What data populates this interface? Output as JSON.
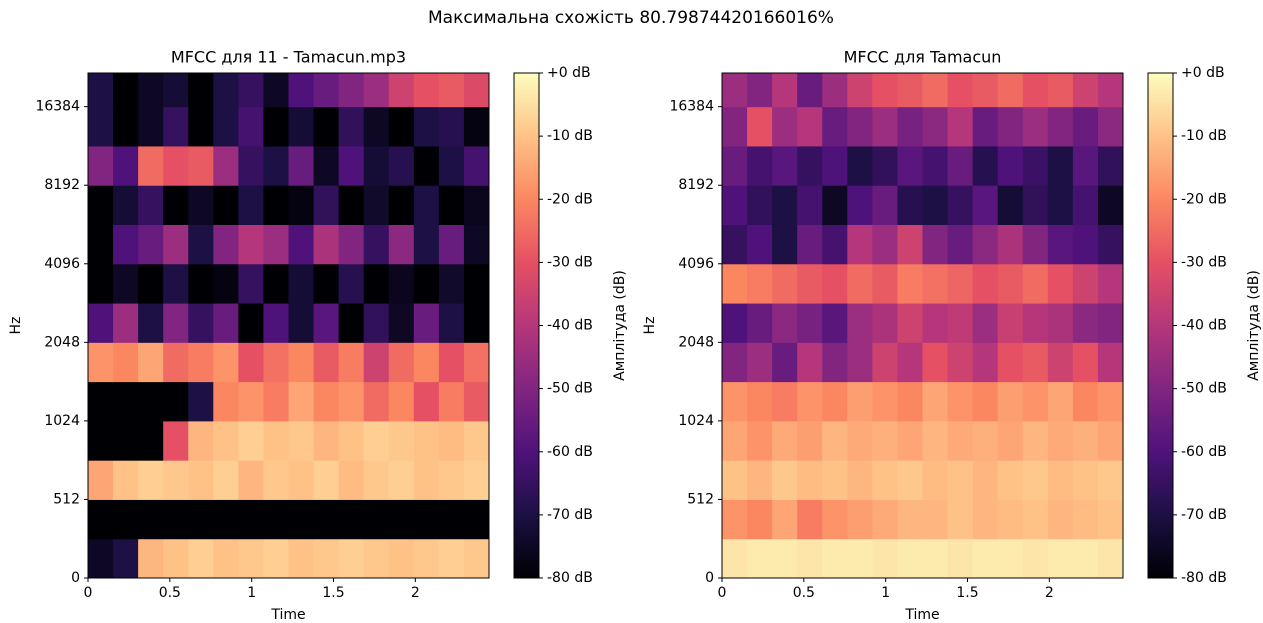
{
  "title": "Максимальна схожість 80.79874420166016%",
  "chart_data": [
    {
      "type": "heatmap",
      "title": "MFCC для 11 - Tamacun.mp3",
      "x_label": "Time",
      "y_label": "Hz",
      "xlim": [
        0,
        2.45
      ],
      "xticks": [
        0,
        0.5,
        1,
        1.5,
        2
      ],
      "ylim": [
        0,
        22050
      ],
      "yticks": [
        0,
        512,
        1024,
        2048,
        4096,
        8192,
        16384
      ],
      "yscale": "symlog",
      "colormap": "magma",
      "y_edges": [
        0,
        256,
        512,
        724,
        1024,
        1448,
        2048,
        2896,
        4096,
        5793,
        8192,
        11585,
        16384,
        22050
      ],
      "z": [
        [
          -75,
          -70,
          -12,
          -10,
          -8,
          -10,
          -9,
          -8,
          -10,
          -9,
          -8,
          -9,
          -10,
          -9,
          -8,
          -9
        ],
        [
          -80,
          -80,
          -80,
          -80,
          -80,
          -80,
          -80,
          -80,
          -80,
          -80,
          -80,
          -80,
          -80,
          -80,
          -80,
          -80
        ],
        [
          -15,
          -10,
          -8,
          -9,
          -10,
          -8,
          -12,
          -9,
          -10,
          -8,
          -11,
          -9,
          -8,
          -10,
          -9,
          -8
        ],
        [
          -80,
          -80,
          -80,
          -30,
          -12,
          -10,
          -8,
          -10,
          -9,
          -12,
          -10,
          -8,
          -9,
          -10,
          -11,
          -9
        ],
        [
          -80,
          -80,
          -80,
          -80,
          -70,
          -20,
          -18,
          -22,
          -15,
          -20,
          -18,
          -25,
          -20,
          -30,
          -22,
          -28
        ],
        [
          -18,
          -20,
          -15,
          -25,
          -22,
          -18,
          -30,
          -24,
          -20,
          -28,
          -22,
          -35,
          -25,
          -20,
          -30,
          -24
        ],
        [
          -60,
          -45,
          -70,
          -50,
          -65,
          -55,
          -80,
          -60,
          -72,
          -58,
          -80,
          -66,
          -75,
          -55,
          -70,
          -80
        ],
        [
          -80,
          -75,
          -80,
          -70,
          -80,
          -78,
          -65,
          -80,
          -72,
          -80,
          -68,
          -80,
          -76,
          -80,
          -74,
          -80
        ],
        [
          -80,
          -60,
          -55,
          -45,
          -70,
          -50,
          -40,
          -45,
          -60,
          -42,
          -50,
          -65,
          -48,
          -70,
          -55,
          -75
        ],
        [
          -80,
          -72,
          -65,
          -80,
          -75,
          -80,
          -70,
          -80,
          -78,
          -66,
          -80,
          -74,
          -80,
          -70,
          -80,
          -76
        ],
        [
          -50,
          -60,
          -25,
          -30,
          -28,
          -45,
          -65,
          -70,
          -55,
          -75,
          -60,
          -72,
          -68,
          -80,
          -70,
          -62
        ],
        [
          -70,
          -80,
          -75,
          -65,
          -80,
          -70,
          -62,
          -80,
          -72,
          -80,
          -66,
          -75,
          -80,
          -70,
          -68,
          -78
        ],
        [
          -70,
          -80,
          -75,
          -72,
          -80,
          -70,
          -65,
          -75,
          -60,
          -55,
          -50,
          -45,
          -35,
          -30,
          -28,
          -32
        ]
      ],
      "colorbar": {
        "label": "Амплітуда (dB)",
        "lim": [
          -80,
          0
        ],
        "ticks": [
          {
            "value": 0,
            "label": "+0 dB"
          },
          {
            "value": -10,
            "label": "-10 dB"
          },
          {
            "value": -20,
            "label": "-20 dB"
          },
          {
            "value": -30,
            "label": "-30 dB"
          },
          {
            "value": -40,
            "label": "-40 dB"
          },
          {
            "value": -50,
            "label": "-50 dB"
          },
          {
            "value": -60,
            "label": "-60 dB"
          },
          {
            "value": -70,
            "label": "-70 dB"
          },
          {
            "value": -80,
            "label": "-80 dB"
          }
        ]
      }
    },
    {
      "type": "heatmap",
      "title": "MFCC для Tamacun",
      "x_label": "Time",
      "y_label": "Hz",
      "xlim": [
        0,
        2.45
      ],
      "xticks": [
        0,
        0.5,
        1,
        1.5,
        2
      ],
      "ylim": [
        0,
        22050
      ],
      "yticks": [
        0,
        512,
        1024,
        2048,
        4096,
        8192,
        16384
      ],
      "yscale": "symlog",
      "colormap": "magma",
      "y_edges": [
        0,
        256,
        512,
        724,
        1024,
        1448,
        2048,
        2896,
        4096,
        5793,
        8192,
        11585,
        16384,
        22050
      ],
      "z": [
        [
          -4,
          -3,
          -3,
          -4,
          -3,
          -3,
          -4,
          -3,
          -3,
          -4,
          -3,
          -3,
          -4,
          -3,
          -3,
          -4
        ],
        [
          -18,
          -20,
          -15,
          -22,
          -18,
          -16,
          -14,
          -12,
          -12,
          -10,
          -12,
          -11,
          -10,
          -12,
          -11,
          -10
        ],
        [
          -10,
          -12,
          -9,
          -11,
          -10,
          -12,
          -10,
          -9,
          -11,
          -10,
          -12,
          -10,
          -9,
          -11,
          -10,
          -9
        ],
        [
          -15,
          -18,
          -14,
          -16,
          -12,
          -14,
          -13,
          -15,
          -12,
          -14,
          -13,
          -15,
          -12,
          -14,
          -13,
          -15
        ],
        [
          -18,
          -20,
          -22,
          -18,
          -20,
          -16,
          -18,
          -20,
          -15,
          -18,
          -20,
          -16,
          -18,
          -15,
          -20,
          -18
        ],
        [
          -50,
          -45,
          -55,
          -40,
          -50,
          -45,
          -35,
          -40,
          -30,
          -35,
          -40,
          -30,
          -28,
          -35,
          -30,
          -40
        ],
        [
          -60,
          -55,
          -48,
          -52,
          -58,
          -45,
          -42,
          -35,
          -40,
          -38,
          -45,
          -36,
          -40,
          -42,
          -48,
          -50
        ],
        [
          -20,
          -22,
          -25,
          -28,
          -30,
          -25,
          -28,
          -22,
          -24,
          -26,
          -30,
          -28,
          -25,
          -30,
          -35,
          -40
        ],
        [
          -65,
          -60,
          -70,
          -55,
          -62,
          -40,
          -45,
          -35,
          -50,
          -55,
          -48,
          -42,
          -50,
          -58,
          -60,
          -65
        ],
        [
          -60,
          -66,
          -70,
          -62,
          -75,
          -60,
          -55,
          -68,
          -70,
          -65,
          -58,
          -72,
          -66,
          -70,
          -62,
          -75
        ],
        [
          -55,
          -62,
          -58,
          -65,
          -60,
          -70,
          -66,
          -58,
          -62,
          -55,
          -68,
          -60,
          -64,
          -70,
          -58,
          -66
        ],
        [
          -50,
          -30,
          -45,
          -40,
          -55,
          -50,
          -45,
          -52,
          -48,
          -40,
          -55,
          -50,
          -45,
          -50,
          -55,
          -48
        ],
        [
          -45,
          -50,
          -40,
          -55,
          -45,
          -35,
          -30,
          -28,
          -25,
          -30,
          -28,
          -25,
          -30,
          -28,
          -35,
          -40
        ]
      ],
      "colorbar": {
        "label": "Амплітуда (dB)",
        "lim": [
          -80,
          0
        ],
        "ticks": [
          {
            "value": 0,
            "label": "+0 dB"
          },
          {
            "value": -10,
            "label": "-10 dB"
          },
          {
            "value": -20,
            "label": "-20 dB"
          },
          {
            "value": -30,
            "label": "-30 dB"
          },
          {
            "value": -40,
            "label": "-40 dB"
          },
          {
            "value": -50,
            "label": "-50 dB"
          },
          {
            "value": -60,
            "label": "-60 dB"
          },
          {
            "value": -70,
            "label": "-70 dB"
          },
          {
            "value": -80,
            "label": "-80 dB"
          }
        ]
      }
    }
  ]
}
